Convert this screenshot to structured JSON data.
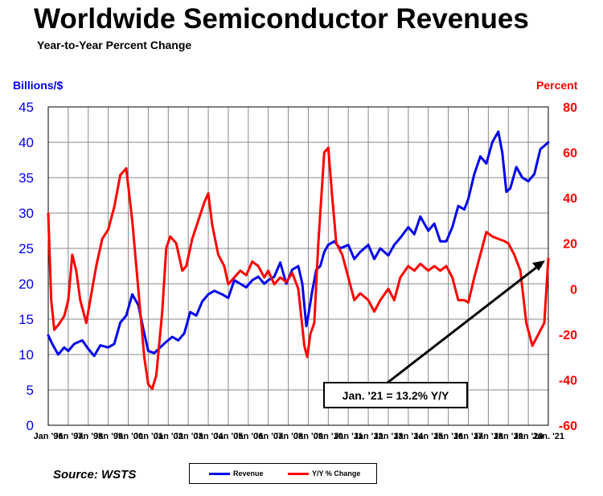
{
  "title": "Worldwide Semiconductor Revenues",
  "subtitle": "Year-to-Year Percent Change",
  "source": "Source: WSTS",
  "colors": {
    "revenue": "#0000ee",
    "yoy": "#ff0000",
    "annotation": "#000000"
  },
  "chart_data": {
    "type": "line",
    "title": "Worldwide Semiconductor Revenues",
    "subtitle": "Year-to-Year Percent Change",
    "y_left_label": "Billions/$",
    "y_right_label": "Percent",
    "y_left_range": [
      0,
      45
    ],
    "y_right_range": [
      -60,
      80
    ],
    "y_left_ticks": [
      "0",
      "5",
      "10",
      "15",
      "20",
      "25",
      "30",
      "35",
      "40",
      "45"
    ],
    "y_right_ticks": [
      "-60",
      "-40",
      "-20",
      "0",
      "20",
      "40",
      "60",
      "80"
    ],
    "x_range": [
      1996.0,
      2021.0
    ],
    "x_tick_labels": [
      "Jan '96",
      "Jan '97",
      "Jan '98",
      "Jan '99",
      "Jan '00",
      "Jan '01",
      "Jan '02",
      "Jan '03",
      "Jan '04",
      "Jan '05",
      "Jan '06",
      "Jan '07",
      "Jan '08",
      "Jan '09",
      "Jan '10",
      "Jan '11",
      "Jan '12",
      "Jan '13",
      "Jan '14",
      "Jan '15",
      "Jan '16",
      "Jan '17",
      "Jan '18",
      "Jan '19",
      "Jan '20",
      "Jan. '21"
    ],
    "grid": true,
    "legend_position": "bottom-center",
    "annotation": "Jan. '21 = 13.2% Y/Y",
    "series": [
      {
        "name": "Revenue",
        "axis": "left",
        "x": [
          1996.0,
          1996.2,
          1996.5,
          1996.8,
          1997.0,
          1997.3,
          1997.7,
          1998.0,
          1998.3,
          1998.6,
          1999.0,
          1999.3,
          1999.6,
          1999.9,
          2000.2,
          2000.5,
          2000.8,
          2001.0,
          2001.3,
          2001.6,
          2001.9,
          2002.2,
          2002.5,
          2002.8,
          2003.1,
          2003.4,
          2003.7,
          2004.0,
          2004.3,
          2004.7,
          2005.0,
          2005.3,
          2005.6,
          2005.9,
          2006.2,
          2006.5,
          2006.8,
          2007.0,
          2007.3,
          2007.6,
          2007.9,
          2008.2,
          2008.5,
          2008.7,
          2008.9,
          2009.0,
          2009.2,
          2009.4,
          2009.6,
          2009.8,
          2010.0,
          2010.3,
          2010.6,
          2011.0,
          2011.3,
          2011.6,
          2012.0,
          2012.3,
          2012.6,
          2013.0,
          2013.3,
          2013.6,
          2014.0,
          2014.3,
          2014.6,
          2015.0,
          2015.3,
          2015.6,
          2015.9,
          2016.2,
          2016.5,
          2016.8,
          2017.0,
          2017.3,
          2017.6,
          2017.9,
          2018.2,
          2018.5,
          2018.7,
          2018.9,
          2019.1,
          2019.4,
          2019.7,
          2020.0,
          2020.3,
          2020.6,
          2020.8,
          2021.0
        ],
        "values": [
          12.7,
          11.5,
          10.0,
          11.0,
          10.5,
          11.5,
          12.0,
          10.8,
          9.8,
          11.3,
          11.0,
          11.5,
          14.5,
          15.5,
          18.5,
          17.0,
          13.0,
          10.5,
          10.2,
          11.0,
          11.8,
          12.5,
          12.0,
          13.0,
          16.0,
          15.5,
          17.5,
          18.5,
          19.0,
          18.5,
          18.0,
          20.5,
          20.0,
          19.5,
          20.5,
          21.0,
          20.0,
          20.5,
          21.0,
          23.0,
          20.0,
          22.0,
          22.5,
          20.0,
          14.0,
          15.5,
          19.0,
          22.0,
          22.5,
          24.5,
          25.5,
          26.0,
          25.0,
          25.5,
          23.5,
          24.5,
          25.5,
          23.5,
          25.0,
          24.0,
          25.5,
          26.5,
          28.0,
          27.0,
          29.5,
          27.5,
          28.5,
          26.0,
          26.0,
          28.0,
          31.0,
          30.5,
          32.0,
          35.5,
          38.0,
          37.0,
          40.0,
          41.5,
          38.5,
          33.0,
          33.5,
          36.5,
          35.0,
          34.5,
          35.5,
          39.0,
          39.5,
          40.0
        ]
      },
      {
        "name": "Y/Y % Change",
        "axis": "right",
        "x": [
          1996.0,
          1996.15,
          1996.3,
          1996.5,
          1996.8,
          1997.0,
          1997.2,
          1997.4,
          1997.6,
          1997.9,
          1998.2,
          1998.4,
          1998.7,
          1999.0,
          1999.3,
          1999.6,
          1999.9,
          2000.2,
          2000.5,
          2000.8,
          2001.0,
          2001.2,
          2001.4,
          2001.7,
          2001.9,
          2002.1,
          2002.4,
          2002.7,
          2002.9,
          2003.2,
          2003.5,
          2003.8,
          2004.0,
          2004.2,
          2004.5,
          2004.8,
          2005.0,
          2005.3,
          2005.6,
          2005.9,
          2006.2,
          2006.5,
          2006.8,
          2007.0,
          2007.3,
          2007.6,
          2007.9,
          2008.2,
          2008.5,
          2008.8,
          2008.95,
          2009.1,
          2009.3,
          2009.5,
          2009.8,
          2010.0,
          2010.2,
          2010.4,
          2010.7,
          2011.0,
          2011.3,
          2011.6,
          2012.0,
          2012.3,
          2012.6,
          2013.0,
          2013.3,
          2013.6,
          2014.0,
          2014.3,
          2014.6,
          2015.0,
          2015.3,
          2015.6,
          2015.9,
          2016.2,
          2016.5,
          2016.8,
          2017.0,
          2017.3,
          2017.6,
          2017.9,
          2018.2,
          2018.5,
          2018.8,
          2019.0,
          2019.3,
          2019.6,
          2019.9,
          2020.2,
          2020.5,
          2020.8,
          2021.0
        ],
        "values": [
          33,
          -5,
          -18,
          -16,
          -12,
          -5,
          15,
          8,
          -5,
          -15,
          0,
          10,
          22,
          26,
          36,
          50,
          53,
          30,
          0,
          -30,
          -42,
          -44,
          -38,
          -10,
          18,
          23,
          20,
          8,
          10,
          22,
          30,
          38,
          42,
          28,
          15,
          10,
          2,
          5,
          8,
          6,
          12,
          10,
          5,
          8,
          2,
          5,
          3,
          7,
          0,
          -25,
          -30,
          -20,
          -15,
          20,
          60,
          62,
          40,
          20,
          15,
          5,
          -5,
          -2,
          -5,
          -10,
          -5,
          0,
          -5,
          5,
          10,
          8,
          11,
          8,
          10,
          8,
          10,
          5,
          -5,
          -5,
          -6,
          5,
          15,
          25,
          23,
          22,
          21,
          20,
          15,
          8,
          -15,
          -25,
          -20,
          -15,
          13.2
        ]
      }
    ]
  }
}
